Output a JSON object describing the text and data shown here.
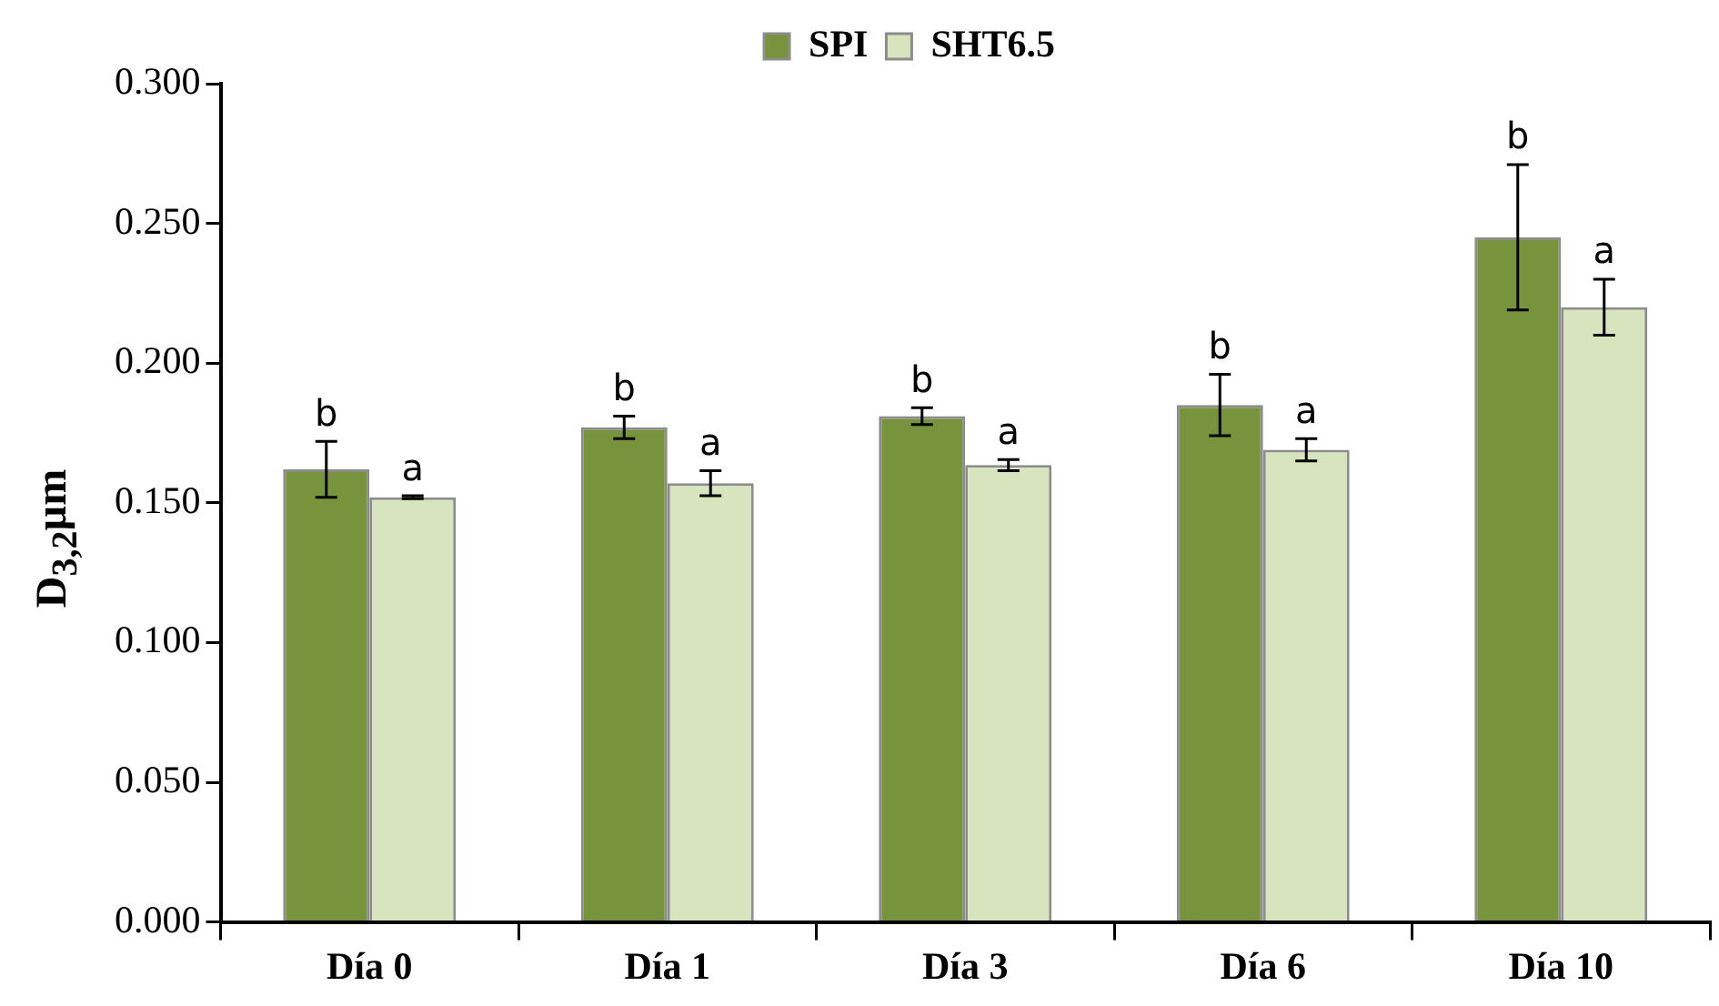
{
  "chart_data": {
    "type": "bar",
    "ylabel": "D$_{3,2}$µm",
    "categories": [
      "Día 0",
      "Día 1",
      "Día 3",
      "Día 6",
      "Día 10"
    ],
    "series": [
      {
        "name": "SPI",
        "color": "#77933c",
        "values": [
          0.162,
          0.177,
          0.181,
          0.185,
          0.245
        ],
        "errors": [
          0.01,
          0.004,
          0.003,
          0.011,
          0.026
        ],
        "value_labels": [
          "b",
          "b",
          "b",
          "b",
          "b"
        ]
      },
      {
        "name": "SHT6.5",
        "color": "#d7e4bd",
        "values": [
          0.152,
          0.157,
          0.1635,
          0.169,
          0.22
        ],
        "errors": [
          0.0005,
          0.0045,
          0.002,
          0.004,
          0.01
        ],
        "value_labels": [
          "a",
          "a",
          "a",
          "a",
          "a"
        ]
      }
    ],
    "ylim": [
      0,
      0.3
    ],
    "yticks": [
      {
        "value": 0,
        "label": "0.000"
      },
      {
        "value": 0.05,
        "label": "0.050"
      },
      {
        "value": 0.1,
        "label": "0.100"
      },
      {
        "value": 0.15,
        "label": "0.150"
      },
      {
        "value": 0.2,
        "label": "0.200"
      },
      {
        "value": 0.25,
        "label": "0.250"
      },
      {
        "value": 0.3,
        "label": "0.300"
      }
    ],
    "grid": false,
    "legend": "top"
  }
}
